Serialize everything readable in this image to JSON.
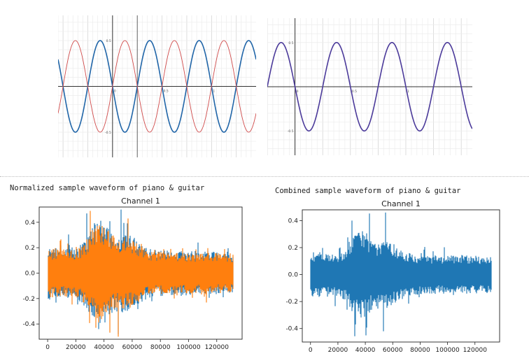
{
  "captions": {
    "left": "Normalized sample waveform of piano & guitar",
    "right": "Combined sample waveform of piano & guitar"
  },
  "chart_data": [
    {
      "type": "line",
      "title": "",
      "xlabel": "",
      "ylabel": "",
      "xlim": [
        -0.55,
        1.45
      ],
      "ylim": [
        -1.55,
        1.55
      ],
      "grid": true,
      "x_ticks": [
        {
          "v": 0,
          "label": "0"
        },
        {
          "v": 0.5,
          "label": "0.5"
        },
        {
          "v": 1,
          "label": "1"
        }
      ],
      "y_ticks": [
        {
          "v": 1,
          "label": "0.5"
        },
        {
          "v": -1,
          "label": "-0.5"
        }
      ],
      "origin_tick": {
        "v": 0,
        "label": "0"
      },
      "series": [
        {
          "color": "#2065a8",
          "function": "-sin",
          "amplitude": 1,
          "period": 0.5
        },
        {
          "color": "#d04a4a",
          "function": "sin",
          "amplitude": 1,
          "period": 0.5
        }
      ]
    },
    {
      "type": "line",
      "title": "",
      "xlabel": "",
      "ylabel": "",
      "xlim": [
        -0.25,
        1.6
      ],
      "ylim": [
        -1.55,
        1.55
      ],
      "grid": true,
      "x_ticks": [
        {
          "v": 0,
          "label": "0"
        },
        {
          "v": 0.5,
          "label": "0.5"
        },
        {
          "v": 1,
          "label": "1"
        }
      ],
      "y_ticks": [
        {
          "v": 1,
          "label": "0.5"
        },
        {
          "v": -1,
          "label": "-0.5"
        }
      ],
      "series": [
        {
          "color": "#4b3a9a",
          "function": "-sin",
          "amplitude": 1,
          "period": 0.5
        }
      ]
    },
    {
      "type": "line",
      "title": "Channel 1",
      "xlabel": "",
      "ylabel": "",
      "xlim": [
        -6000,
        138000
      ],
      "ylim": [
        -0.52,
        0.52
      ],
      "grid": false,
      "x_ticks": [
        0,
        20000,
        40000,
        60000,
        80000,
        100000,
        120000
      ],
      "y_ticks": [
        -0.4,
        -0.2,
        0.0,
        0.2,
        0.4
      ],
      "samples": 132000,
      "series": [
        {
          "color": "#1f77b4",
          "seed": 7,
          "scale": 1.0,
          "spikes": [
            [
              52000,
              0.5
            ],
            [
              28000,
              0.47
            ],
            [
              50000,
              -0.48
            ],
            [
              36000,
              -0.44
            ]
          ]
        },
        {
          "color": "#ff7f0e",
          "seed": 13,
          "scale": 0.92,
          "spikes": [
            [
              30000,
              0.49
            ],
            [
              57000,
              0.43
            ],
            [
              34000,
              -0.43
            ],
            [
              50000,
              -0.5
            ]
          ]
        }
      ]
    },
    {
      "type": "line",
      "title": "Channel 1",
      "xlabel": "",
      "ylabel": "",
      "xlim": [
        -6000,
        138000
      ],
      "ylim": [
        -0.5,
        0.48
      ],
      "grid": false,
      "x_ticks": [
        0,
        20000,
        40000,
        60000,
        80000,
        100000,
        120000
      ],
      "y_ticks": [
        -0.4,
        -0.2,
        0.0,
        0.2,
        0.4
      ],
      "samples": 132000,
      "series": [
        {
          "color": "#1f77b4",
          "seed": 21,
          "scale": 0.82,
          "spikes": [
            [
              55000,
              0.46
            ],
            [
              30000,
              0.4
            ],
            [
              53000,
              -0.42
            ],
            [
              33000,
              -0.37
            ]
          ]
        }
      ]
    }
  ]
}
